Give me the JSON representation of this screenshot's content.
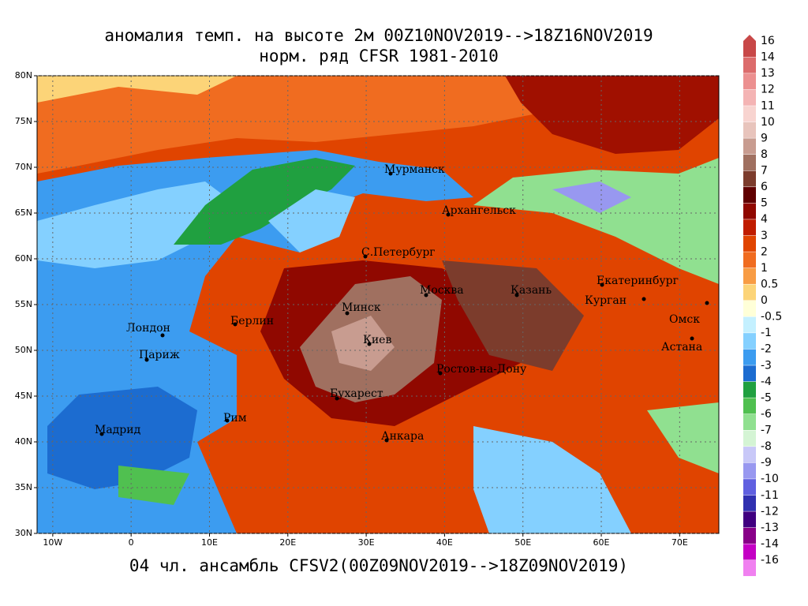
{
  "header": {
    "title": "аномалия темп. на высоте 2м 00Z10NOV2019-->18Z16NOV2019",
    "subtitle": "норм. ряд CFSR 1981-2010",
    "footer": "04 чл. ансамбль CFSV2(00Z09NOV2019-->18Z09NOV2019)"
  },
  "map": {
    "xlim": [
      -12,
      75
    ],
    "ylim": [
      30,
      80
    ],
    "xticks": [
      {
        "value": -10,
        "label": "10W"
      },
      0,
      {
        "value": 10,
        "label": "10E"
      },
      {
        "value": 20,
        "label": "20E"
      },
      {
        "value": 30,
        "label": "30E"
      },
      {
        "value": 40,
        "label": "40E"
      },
      {
        "value": 50,
        "label": "50E"
      },
      {
        "value": 60,
        "label": "60E"
      },
      {
        "value": 70,
        "label": "70E"
      }
    ],
    "yticks": [
      {
        "value": 30,
        "label": "30N"
      },
      {
        "value": 35,
        "label": "35N"
      },
      {
        "value": 40,
        "label": "40N"
      },
      {
        "value": 45,
        "label": "45N"
      },
      {
        "value": 50,
        "label": "50N"
      },
      {
        "value": 55,
        "label": "55N"
      },
      {
        "value": 60,
        "label": "60N"
      },
      {
        "value": 65,
        "label": "65N"
      },
      {
        "value": 70,
        "label": "70N"
      },
      {
        "value": 75,
        "label": "75N"
      },
      {
        "value": 80,
        "label": "80N"
      }
    ],
    "cities": [
      "Мурманск",
      "Архангельск",
      "С.Петербург",
      "Москва",
      "Казань",
      "Екатеринбург",
      "Курган",
      "Омск",
      "Астана",
      "Минск",
      "Берлин",
      "Лондон",
      "Париж",
      "Киев",
      "Ростов-на-Дону",
      "Бухарест",
      "Рим",
      "Мадрид",
      "Анкара"
    ]
  },
  "colorbar": {
    "ticks": [
      16,
      14,
      13,
      12,
      11,
      10,
      9,
      8,
      7,
      6,
      5,
      4,
      3,
      2,
      1,
      0.5,
      0,
      -0.5,
      -1,
      -2,
      -3,
      -4,
      -5,
      -6,
      -7,
      -8,
      -9,
      -10,
      -11,
      -12,
      -13,
      -14,
      -16
    ],
    "colors": [
      "#c84848",
      "#dc6c6c",
      "#ec9090",
      "#f4b4b4",
      "#f8d4d0",
      "#e8c4bc",
      "#c89c90",
      "#a07060",
      "#7c3c2c",
      "#600000",
      "#900800",
      "#c01c00",
      "#e04400",
      "#f06c20",
      "#f89c44",
      "#fcd478",
      "#ffffd8",
      "#c4f0ff",
      "#84d0ff",
      "#3c9cf0",
      "#1c6cd0",
      "#20a040",
      "#50c050",
      "#90e090",
      "#d4f4d4",
      "#c8c8f8",
      "#9898f0",
      "#6060e0",
      "#3030b0",
      "#400080",
      "#880088",
      "#c400c4",
      "#f080f0"
    ]
  }
}
